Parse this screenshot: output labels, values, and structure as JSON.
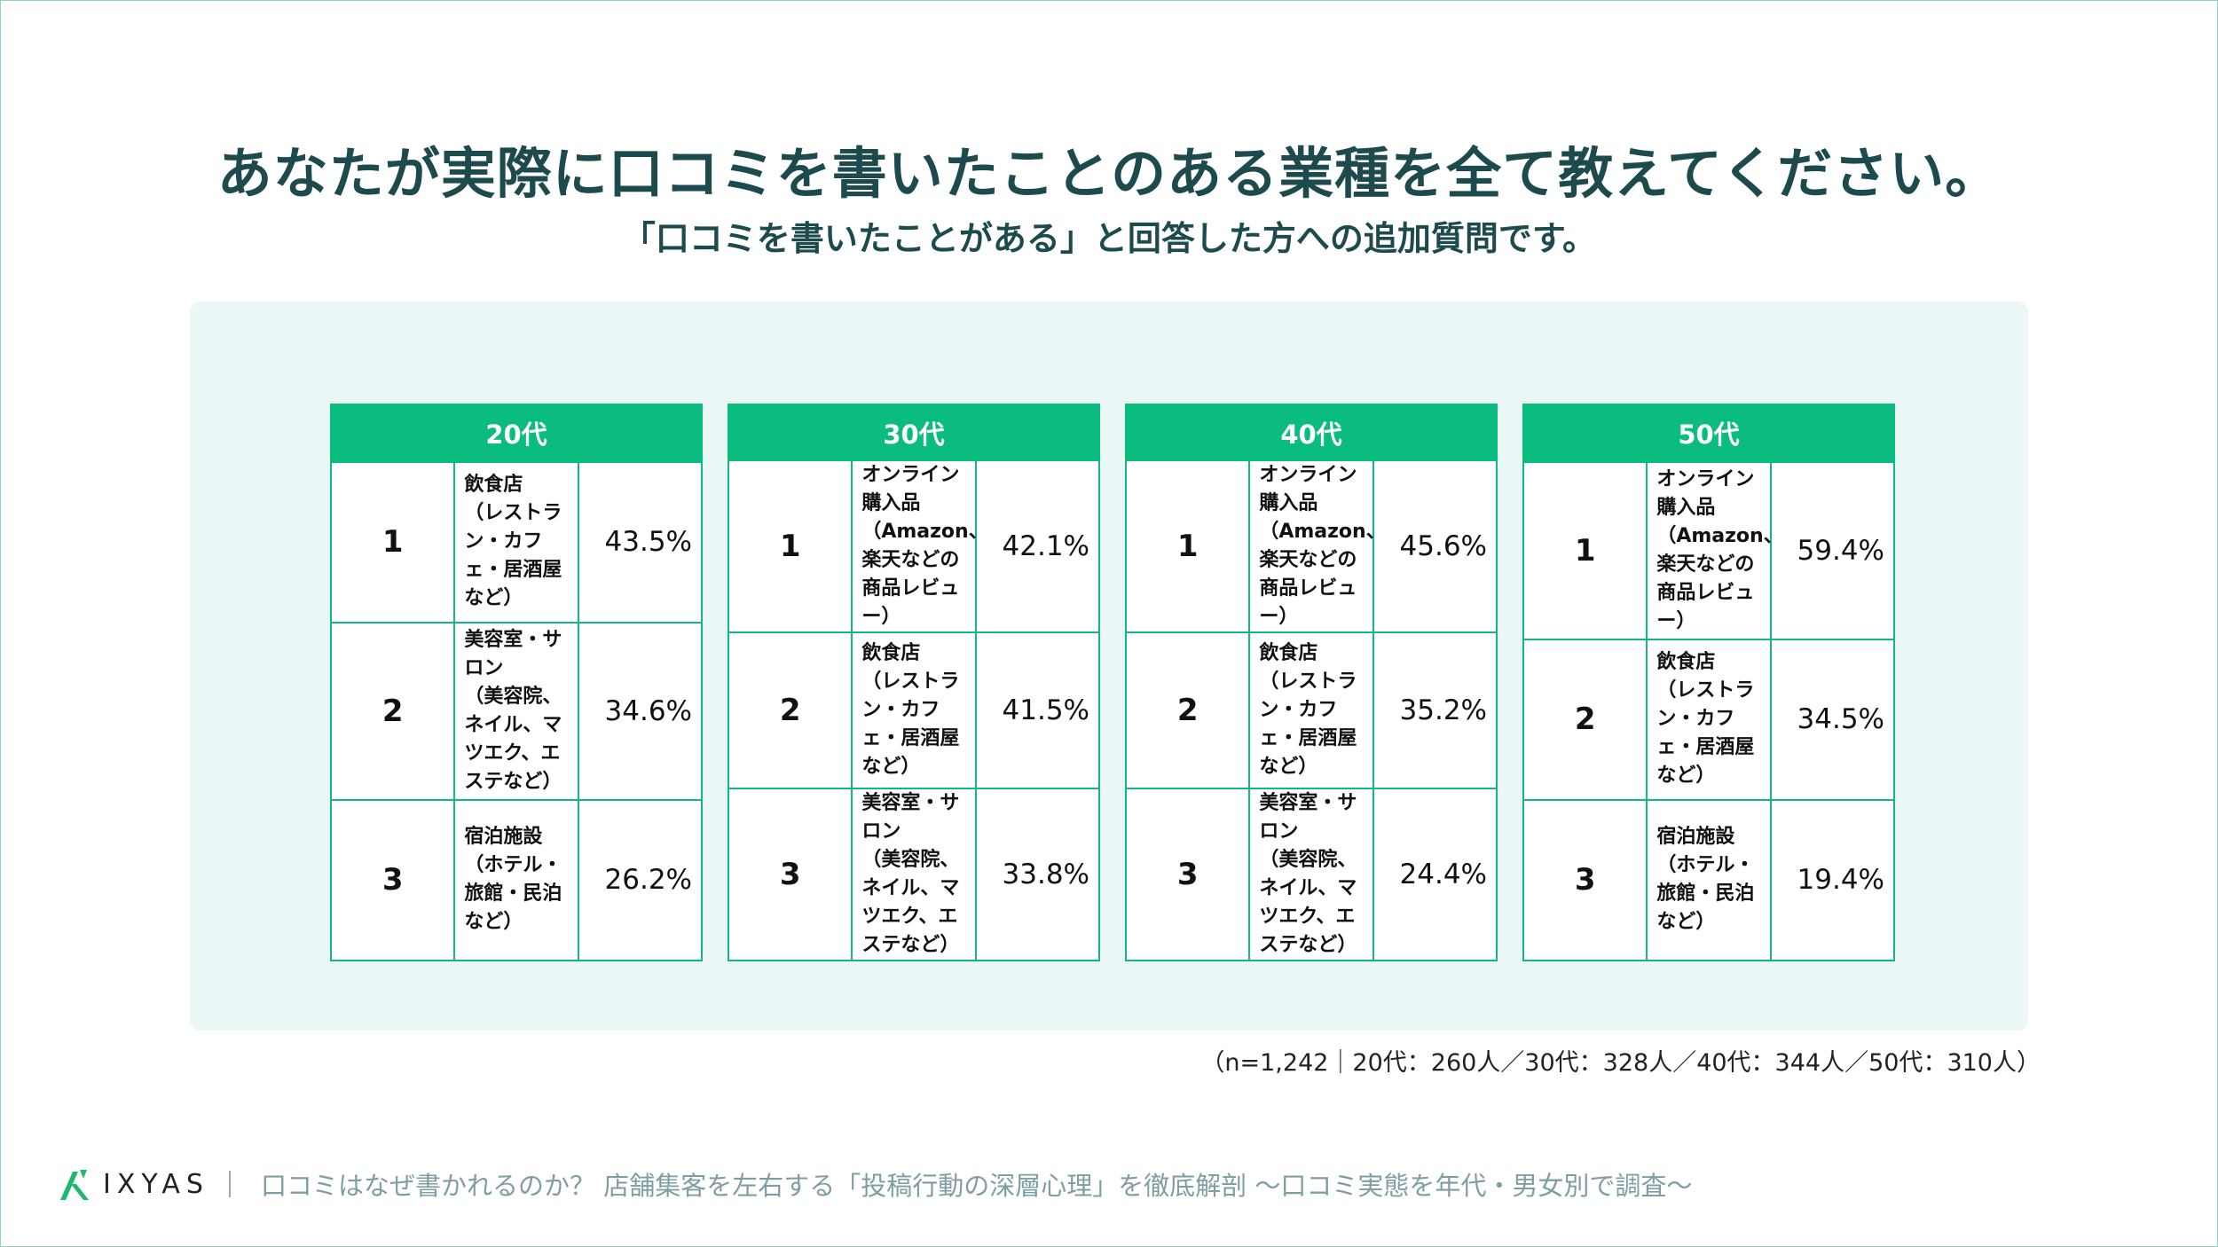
{
  "title": "あなたが実際に口コミを書いたことのある業種を全て教えてください。",
  "subtitle": "「口コミを書いたことがある」と回答した方への追加質問です。",
  "colors": {
    "header_green": "#0abc7e",
    "title_teal": "#1d4a4d",
    "panel_bg": "#eaf7f6"
  },
  "tables": [
    {
      "header": "20代",
      "rows": [
        {
          "rank": "1",
          "name": "飲食店",
          "desc": "（レストラン・カフェ・居酒屋など）",
          "percent": "43.5%"
        },
        {
          "rank": "2",
          "name": "美容室・サロン",
          "desc": "（美容院、ネイル、マツエク、エステなど）",
          "percent": "34.6%"
        },
        {
          "rank": "3",
          "name": "宿泊施設",
          "desc": "（ホテル・旅館・民泊など）",
          "percent": "26.2%"
        }
      ]
    },
    {
      "header": "30代",
      "rows": [
        {
          "rank": "1",
          "name": "オンライン購入品",
          "desc": "（Amazon、楽天などの商品レビュー）",
          "percent": "42.1%"
        },
        {
          "rank": "2",
          "name": "飲食店",
          "desc": "（レストラン・カフェ・居酒屋など）",
          "percent": "41.5%"
        },
        {
          "rank": "3",
          "name": "美容室・サロン",
          "desc": "（美容院、ネイル、マツエク、エステなど）",
          "percent": "33.8%"
        }
      ]
    },
    {
      "header": "40代",
      "rows": [
        {
          "rank": "1",
          "name": "オンライン購入品",
          "desc": "（Amazon、楽天などの商品レビュー）",
          "percent": "45.6%"
        },
        {
          "rank": "2",
          "name": "飲食店",
          "desc": "（レストラン・カフェ・居酒屋など）",
          "percent": "35.2%"
        },
        {
          "rank": "3",
          "name": "美容室・サロン",
          "desc": "（美容院、ネイル、マツエク、エステなど）",
          "percent": "24.4%"
        }
      ]
    },
    {
      "header": "50代",
      "rows": [
        {
          "rank": "1",
          "name": "オンライン購入品",
          "desc": "（Amazon、楽天などの商品レビュー）",
          "percent": "59.4%"
        },
        {
          "rank": "2",
          "name": "飲食店",
          "desc": "（レストラン・カフェ・居酒屋など）",
          "percent": "34.5%"
        },
        {
          "rank": "3",
          "name": "宿泊施設",
          "desc": "（ホテル・旅館・民泊など）",
          "percent": "19.4%"
        }
      ]
    }
  ],
  "sample_note": "（n=1,242｜20代：260人／30代：328人／40代：344人／50代：310人）",
  "footer": {
    "logo_icon": "ixyas-logo-mark",
    "logo_text": "IXYAS",
    "text": "口コミはなぜ書かれるのか？ 店舗集客を左右する「投稿行動の深層心理」を徹底解剖 〜口コミ実態を年代・男女別で調査〜"
  }
}
